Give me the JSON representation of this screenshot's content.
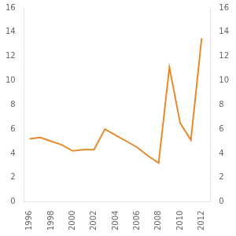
{
  "chart_data": {
    "type": "line",
    "x": [
      1996,
      1997,
      1998,
      1999,
      2000,
      2001,
      2002,
      2003,
      2004,
      2005,
      2006,
      2007,
      2008,
      2009,
      2010,
      2011,
      2012
    ],
    "values": [
      5.2,
      5.3,
      5.0,
      4.7,
      4.2,
      4.3,
      4.3,
      6.0,
      5.5,
      5.0,
      4.5,
      3.8,
      3.2,
      11.1,
      6.5,
      5.1,
      13.5
    ],
    "color": "#E8892B",
    "xlim": [
      1995.5,
      2012.8
    ],
    "xticks": [
      1996,
      1998,
      2000,
      2002,
      2004,
      2006,
      2008,
      2010,
      2012
    ],
    "ylim": [
      0,
      16
    ],
    "yticks": [
      0,
      2,
      4,
      6,
      8,
      10,
      12,
      14,
      16
    ],
    "y2lim": [
      0,
      16
    ],
    "y2ticks": [
      0,
      2,
      4,
      6,
      8,
      10,
      12,
      14,
      16
    ],
    "grid": false
  }
}
